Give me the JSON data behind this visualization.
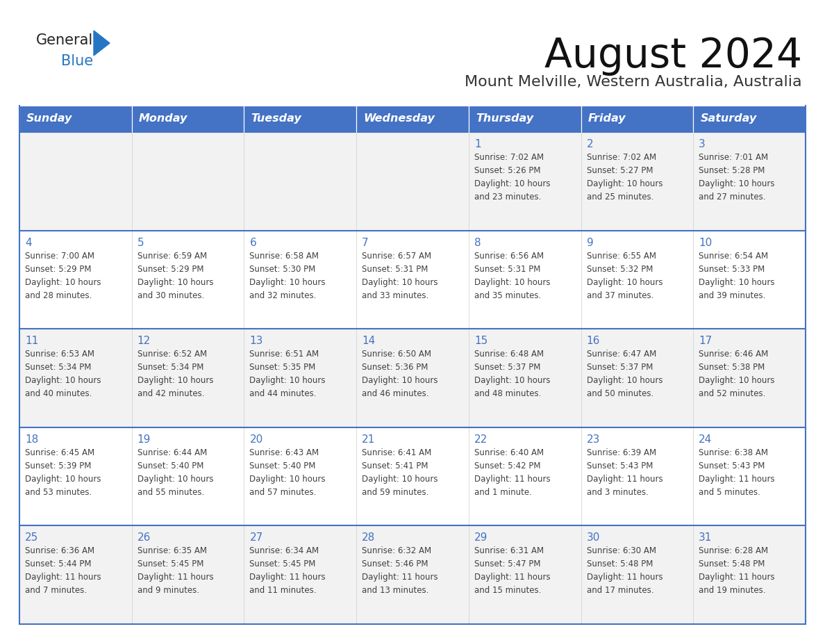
{
  "title": "August 2024",
  "subtitle": "Mount Melville, Western Australia, Australia",
  "header_bg": "#4472C4",
  "header_text": "#FFFFFF",
  "cell_bg_white": "#FFFFFF",
  "cell_bg_gray": "#F2F2F2",
  "day_number_color": "#4472C4",
  "text_color": "#404040",
  "border_color": "#4472C4",
  "logo_text_color": "#222222",
  "logo_blue_color": "#2575C4",
  "days_of_week": [
    "Sunday",
    "Monday",
    "Tuesday",
    "Wednesday",
    "Thursday",
    "Friday",
    "Saturday"
  ],
  "weeks": [
    [
      {
        "day": "",
        "info": ""
      },
      {
        "day": "",
        "info": ""
      },
      {
        "day": "",
        "info": ""
      },
      {
        "day": "",
        "info": ""
      },
      {
        "day": "1",
        "info": "Sunrise: 7:02 AM\nSunset: 5:26 PM\nDaylight: 10 hours\nand 23 minutes."
      },
      {
        "day": "2",
        "info": "Sunrise: 7:02 AM\nSunset: 5:27 PM\nDaylight: 10 hours\nand 25 minutes."
      },
      {
        "day": "3",
        "info": "Sunrise: 7:01 AM\nSunset: 5:28 PM\nDaylight: 10 hours\nand 27 minutes."
      }
    ],
    [
      {
        "day": "4",
        "info": "Sunrise: 7:00 AM\nSunset: 5:29 PM\nDaylight: 10 hours\nand 28 minutes."
      },
      {
        "day": "5",
        "info": "Sunrise: 6:59 AM\nSunset: 5:29 PM\nDaylight: 10 hours\nand 30 minutes."
      },
      {
        "day": "6",
        "info": "Sunrise: 6:58 AM\nSunset: 5:30 PM\nDaylight: 10 hours\nand 32 minutes."
      },
      {
        "day": "7",
        "info": "Sunrise: 6:57 AM\nSunset: 5:31 PM\nDaylight: 10 hours\nand 33 minutes."
      },
      {
        "day": "8",
        "info": "Sunrise: 6:56 AM\nSunset: 5:31 PM\nDaylight: 10 hours\nand 35 minutes."
      },
      {
        "day": "9",
        "info": "Sunrise: 6:55 AM\nSunset: 5:32 PM\nDaylight: 10 hours\nand 37 minutes."
      },
      {
        "day": "10",
        "info": "Sunrise: 6:54 AM\nSunset: 5:33 PM\nDaylight: 10 hours\nand 39 minutes."
      }
    ],
    [
      {
        "day": "11",
        "info": "Sunrise: 6:53 AM\nSunset: 5:34 PM\nDaylight: 10 hours\nand 40 minutes."
      },
      {
        "day": "12",
        "info": "Sunrise: 6:52 AM\nSunset: 5:34 PM\nDaylight: 10 hours\nand 42 minutes."
      },
      {
        "day": "13",
        "info": "Sunrise: 6:51 AM\nSunset: 5:35 PM\nDaylight: 10 hours\nand 44 minutes."
      },
      {
        "day": "14",
        "info": "Sunrise: 6:50 AM\nSunset: 5:36 PM\nDaylight: 10 hours\nand 46 minutes."
      },
      {
        "day": "15",
        "info": "Sunrise: 6:48 AM\nSunset: 5:37 PM\nDaylight: 10 hours\nand 48 minutes."
      },
      {
        "day": "16",
        "info": "Sunrise: 6:47 AM\nSunset: 5:37 PM\nDaylight: 10 hours\nand 50 minutes."
      },
      {
        "day": "17",
        "info": "Sunrise: 6:46 AM\nSunset: 5:38 PM\nDaylight: 10 hours\nand 52 minutes."
      }
    ],
    [
      {
        "day": "18",
        "info": "Sunrise: 6:45 AM\nSunset: 5:39 PM\nDaylight: 10 hours\nand 53 minutes."
      },
      {
        "day": "19",
        "info": "Sunrise: 6:44 AM\nSunset: 5:40 PM\nDaylight: 10 hours\nand 55 minutes."
      },
      {
        "day": "20",
        "info": "Sunrise: 6:43 AM\nSunset: 5:40 PM\nDaylight: 10 hours\nand 57 minutes."
      },
      {
        "day": "21",
        "info": "Sunrise: 6:41 AM\nSunset: 5:41 PM\nDaylight: 10 hours\nand 59 minutes."
      },
      {
        "day": "22",
        "info": "Sunrise: 6:40 AM\nSunset: 5:42 PM\nDaylight: 11 hours\nand 1 minute."
      },
      {
        "day": "23",
        "info": "Sunrise: 6:39 AM\nSunset: 5:43 PM\nDaylight: 11 hours\nand 3 minutes."
      },
      {
        "day": "24",
        "info": "Sunrise: 6:38 AM\nSunset: 5:43 PM\nDaylight: 11 hours\nand 5 minutes."
      }
    ],
    [
      {
        "day": "25",
        "info": "Sunrise: 6:36 AM\nSunset: 5:44 PM\nDaylight: 11 hours\nand 7 minutes."
      },
      {
        "day": "26",
        "info": "Sunrise: 6:35 AM\nSunset: 5:45 PM\nDaylight: 11 hours\nand 9 minutes."
      },
      {
        "day": "27",
        "info": "Sunrise: 6:34 AM\nSunset: 5:45 PM\nDaylight: 11 hours\nand 11 minutes."
      },
      {
        "day": "28",
        "info": "Sunrise: 6:32 AM\nSunset: 5:46 PM\nDaylight: 11 hours\nand 13 minutes."
      },
      {
        "day": "29",
        "info": "Sunrise: 6:31 AM\nSunset: 5:47 PM\nDaylight: 11 hours\nand 15 minutes."
      },
      {
        "day": "30",
        "info": "Sunrise: 6:30 AM\nSunset: 5:48 PM\nDaylight: 11 hours\nand 17 minutes."
      },
      {
        "day": "31",
        "info": "Sunrise: 6:28 AM\nSunset: 5:48 PM\nDaylight: 11 hours\nand 19 minutes."
      }
    ]
  ]
}
